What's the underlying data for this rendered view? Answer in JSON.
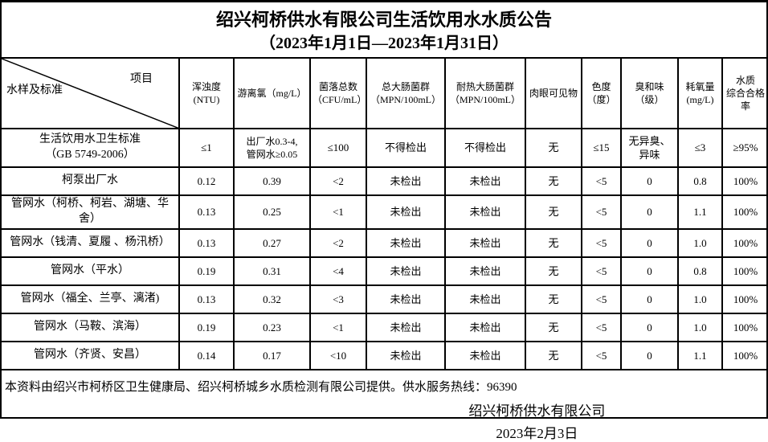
{
  "page": {
    "title": "绍兴柯桥供水有限公司生活饮用水水质公告",
    "subtitle": "（2023年1月1日—2023年1月31日）"
  },
  "table": {
    "corner": {
      "top_right": "项目",
      "bottom_left": "水样及标准"
    },
    "columns": [
      "浑浊度\n(NTU)",
      "游离氯（mg/L）",
      "菌落总数\n（CFU/mL）",
      "总大肠菌群\n（MPN/100mL）",
      "耐热大肠菌群\n（MPN/100mL）",
      "肉眼可见物",
      "色度\n（度）",
      "臭和味\n（级）",
      "耗氧量\n(mg/L)",
      "水质\n综合合格率"
    ],
    "rows": [
      {
        "kind": "standard",
        "label": "生活饮用水卫生标准\n（GB 5749-2006）",
        "values": [
          "≤1",
          "出厂水0.3-4,\n管网水≥0.05",
          "≤100",
          "不得检出",
          "不得检出",
          "无",
          "≤15",
          "无异臭、\n异味",
          "≤3",
          "≥95%"
        ]
      },
      {
        "kind": "data",
        "label": "柯泵出厂水",
        "values": [
          "0.12",
          "0.39",
          "<2",
          "未检出",
          "未检出",
          "无",
          "<5",
          "0",
          "0.8",
          "100%"
        ]
      },
      {
        "kind": "data",
        "label": "管网水（柯桥、柯岩、湖塘、华舍）",
        "values": [
          "0.13",
          "0.25",
          "<1",
          "未检出",
          "未检出",
          "无",
          "<5",
          "0",
          "1.1",
          "100%"
        ]
      },
      {
        "kind": "data",
        "label": "管网水（钱清、夏履 、杨汛桥）",
        "values": [
          "0.13",
          "0.27",
          "<2",
          "未检出",
          "未检出",
          "无",
          "<5",
          "0",
          "1.0",
          "100%"
        ]
      },
      {
        "kind": "data",
        "label": "管网水（平水）",
        "values": [
          "0.19",
          "0.31",
          "<4",
          "未检出",
          "未检出",
          "无",
          "<5",
          "0",
          "0.8",
          "100%"
        ]
      },
      {
        "kind": "data",
        "label": "管网水（福全、兰亭、漓渚)",
        "values": [
          "0.13",
          "0.32",
          "<3",
          "未检出",
          "未检出",
          "无",
          "<5",
          "0",
          "1.0",
          "100%"
        ]
      },
      {
        "kind": "data",
        "label": "管网水（马鞍、滨海）",
        "values": [
          "0.19",
          "0.23",
          "<1",
          "未检出",
          "未检出",
          "无",
          "<5",
          "0",
          "1.0",
          "100%"
        ]
      },
      {
        "kind": "data",
        "label": "管网水（齐贤、安昌）",
        "values": [
          "0.14",
          "0.17",
          "<10",
          "未检出",
          "未检出",
          "无",
          "<5",
          "0",
          "1.1",
          "100%"
        ]
      }
    ]
  },
  "footer": {
    "note": "本资料由绍兴市柯桥区卫生健康局、绍兴柯桥城乡水质检测有限公司提供。供水服务热线：96390",
    "company": "绍兴柯桥供水有限公司",
    "date": "2023年2月3日"
  }
}
